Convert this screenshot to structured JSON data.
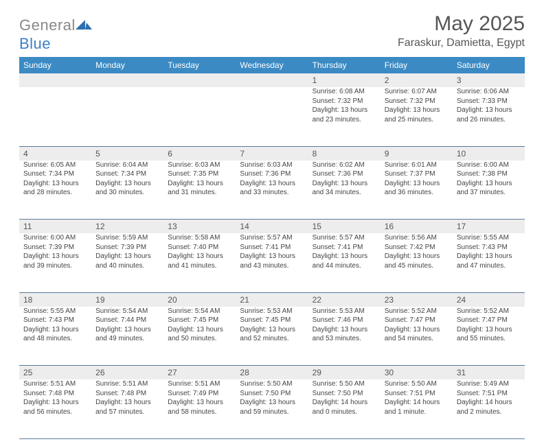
{
  "logo": {
    "text1": "General",
    "text2": "Blue"
  },
  "title": "May 2025",
  "location": "Faraskur, Damietta, Egypt",
  "day_headers": [
    "Sunday",
    "Monday",
    "Tuesday",
    "Wednesday",
    "Thursday",
    "Friday",
    "Saturday"
  ],
  "colors": {
    "header_bg": "#3b8ac4",
    "header_text": "#ffffff",
    "shade_bg": "#ededed",
    "border": "#5a7a99",
    "title_color": "#555555",
    "body_text": "#444444"
  },
  "weeks": [
    [
      {
        "n": "",
        "sr": "",
        "ss": "",
        "dl": ""
      },
      {
        "n": "",
        "sr": "",
        "ss": "",
        "dl": ""
      },
      {
        "n": "",
        "sr": "",
        "ss": "",
        "dl": ""
      },
      {
        "n": "",
        "sr": "",
        "ss": "",
        "dl": ""
      },
      {
        "n": "1",
        "sr": "Sunrise: 6:08 AM",
        "ss": "Sunset: 7:32 PM",
        "dl": "Daylight: 13 hours and 23 minutes."
      },
      {
        "n": "2",
        "sr": "Sunrise: 6:07 AM",
        "ss": "Sunset: 7:32 PM",
        "dl": "Daylight: 13 hours and 25 minutes."
      },
      {
        "n": "3",
        "sr": "Sunrise: 6:06 AM",
        "ss": "Sunset: 7:33 PM",
        "dl": "Daylight: 13 hours and 26 minutes."
      }
    ],
    [
      {
        "n": "4",
        "sr": "Sunrise: 6:05 AM",
        "ss": "Sunset: 7:34 PM",
        "dl": "Daylight: 13 hours and 28 minutes."
      },
      {
        "n": "5",
        "sr": "Sunrise: 6:04 AM",
        "ss": "Sunset: 7:34 PM",
        "dl": "Daylight: 13 hours and 30 minutes."
      },
      {
        "n": "6",
        "sr": "Sunrise: 6:03 AM",
        "ss": "Sunset: 7:35 PM",
        "dl": "Daylight: 13 hours and 31 minutes."
      },
      {
        "n": "7",
        "sr": "Sunrise: 6:03 AM",
        "ss": "Sunset: 7:36 PM",
        "dl": "Daylight: 13 hours and 33 minutes."
      },
      {
        "n": "8",
        "sr": "Sunrise: 6:02 AM",
        "ss": "Sunset: 7:36 PM",
        "dl": "Daylight: 13 hours and 34 minutes."
      },
      {
        "n": "9",
        "sr": "Sunrise: 6:01 AM",
        "ss": "Sunset: 7:37 PM",
        "dl": "Daylight: 13 hours and 36 minutes."
      },
      {
        "n": "10",
        "sr": "Sunrise: 6:00 AM",
        "ss": "Sunset: 7:38 PM",
        "dl": "Daylight: 13 hours and 37 minutes."
      }
    ],
    [
      {
        "n": "11",
        "sr": "Sunrise: 6:00 AM",
        "ss": "Sunset: 7:39 PM",
        "dl": "Daylight: 13 hours and 39 minutes."
      },
      {
        "n": "12",
        "sr": "Sunrise: 5:59 AM",
        "ss": "Sunset: 7:39 PM",
        "dl": "Daylight: 13 hours and 40 minutes."
      },
      {
        "n": "13",
        "sr": "Sunrise: 5:58 AM",
        "ss": "Sunset: 7:40 PM",
        "dl": "Daylight: 13 hours and 41 minutes."
      },
      {
        "n": "14",
        "sr": "Sunrise: 5:57 AM",
        "ss": "Sunset: 7:41 PM",
        "dl": "Daylight: 13 hours and 43 minutes."
      },
      {
        "n": "15",
        "sr": "Sunrise: 5:57 AM",
        "ss": "Sunset: 7:41 PM",
        "dl": "Daylight: 13 hours and 44 minutes."
      },
      {
        "n": "16",
        "sr": "Sunrise: 5:56 AM",
        "ss": "Sunset: 7:42 PM",
        "dl": "Daylight: 13 hours and 45 minutes."
      },
      {
        "n": "17",
        "sr": "Sunrise: 5:55 AM",
        "ss": "Sunset: 7:43 PM",
        "dl": "Daylight: 13 hours and 47 minutes."
      }
    ],
    [
      {
        "n": "18",
        "sr": "Sunrise: 5:55 AM",
        "ss": "Sunset: 7:43 PM",
        "dl": "Daylight: 13 hours and 48 minutes."
      },
      {
        "n": "19",
        "sr": "Sunrise: 5:54 AM",
        "ss": "Sunset: 7:44 PM",
        "dl": "Daylight: 13 hours and 49 minutes."
      },
      {
        "n": "20",
        "sr": "Sunrise: 5:54 AM",
        "ss": "Sunset: 7:45 PM",
        "dl": "Daylight: 13 hours and 50 minutes."
      },
      {
        "n": "21",
        "sr": "Sunrise: 5:53 AM",
        "ss": "Sunset: 7:45 PM",
        "dl": "Daylight: 13 hours and 52 minutes."
      },
      {
        "n": "22",
        "sr": "Sunrise: 5:53 AM",
        "ss": "Sunset: 7:46 PM",
        "dl": "Daylight: 13 hours and 53 minutes."
      },
      {
        "n": "23",
        "sr": "Sunrise: 5:52 AM",
        "ss": "Sunset: 7:47 PM",
        "dl": "Daylight: 13 hours and 54 minutes."
      },
      {
        "n": "24",
        "sr": "Sunrise: 5:52 AM",
        "ss": "Sunset: 7:47 PM",
        "dl": "Daylight: 13 hours and 55 minutes."
      }
    ],
    [
      {
        "n": "25",
        "sr": "Sunrise: 5:51 AM",
        "ss": "Sunset: 7:48 PM",
        "dl": "Daylight: 13 hours and 56 minutes."
      },
      {
        "n": "26",
        "sr": "Sunrise: 5:51 AM",
        "ss": "Sunset: 7:48 PM",
        "dl": "Daylight: 13 hours and 57 minutes."
      },
      {
        "n": "27",
        "sr": "Sunrise: 5:51 AM",
        "ss": "Sunset: 7:49 PM",
        "dl": "Daylight: 13 hours and 58 minutes."
      },
      {
        "n": "28",
        "sr": "Sunrise: 5:50 AM",
        "ss": "Sunset: 7:50 PM",
        "dl": "Daylight: 13 hours and 59 minutes."
      },
      {
        "n": "29",
        "sr": "Sunrise: 5:50 AM",
        "ss": "Sunset: 7:50 PM",
        "dl": "Daylight: 14 hours and 0 minutes."
      },
      {
        "n": "30",
        "sr": "Sunrise: 5:50 AM",
        "ss": "Sunset: 7:51 PM",
        "dl": "Daylight: 14 hours and 1 minute."
      },
      {
        "n": "31",
        "sr": "Sunrise: 5:49 AM",
        "ss": "Sunset: 7:51 PM",
        "dl": "Daylight: 14 hours and 2 minutes."
      }
    ]
  ]
}
